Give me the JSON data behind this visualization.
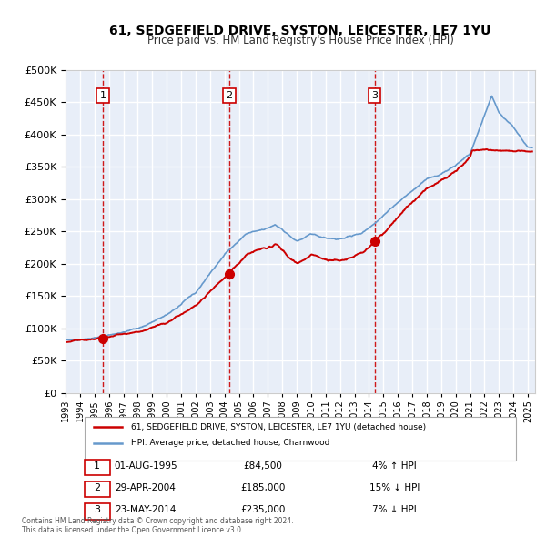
{
  "title": "61, SEDGEFIELD DRIVE, SYSTON, LEICESTER, LE7 1YU",
  "subtitle": "Price paid vs. HM Land Registry's House Price Index (HPI)",
  "bg_color": "#f0f4ff",
  "plot_bg_color": "#e8eef8",
  "grid_color": "#ffffff",
  "ylim": [
    0,
    500000
  ],
  "yticks": [
    0,
    50000,
    100000,
    150000,
    200000,
    250000,
    300000,
    350000,
    400000,
    450000,
    500000
  ],
  "xlim_start": 1993.0,
  "xlim_end": 2025.5,
  "sale_dates_decimal": [
    1995.583,
    2004.328,
    2014.389
  ],
  "sale_prices": [
    84500,
    185000,
    235000
  ],
  "sale_labels": [
    "1",
    "2",
    "3"
  ],
  "vline_color": "#cc0000",
  "vline_style": "--",
  "marker_color": "#cc0000",
  "hpi_line_color": "#6699cc",
  "price_line_color": "#cc0000",
  "legend_house_label": "61, SEDGEFIELD DRIVE, SYSTON, LEICESTER, LE7 1YU (detached house)",
  "legend_hpi_label": "HPI: Average price, detached house, Charnwood",
  "table_rows": [
    [
      "1",
      "01-AUG-1995",
      "£84,500",
      "4% ↑ HPI"
    ],
    [
      "2",
      "29-APR-2004",
      "£185,000",
      "15% ↓ HPI"
    ],
    [
      "3",
      "23-MAY-2014",
      "£235,000",
      "7% ↓ HPI"
    ]
  ],
  "footnote": "Contains HM Land Registry data © Crown copyright and database right 2024.\nThis data is licensed under the Open Government Licence v3.0.",
  "xlabel_years": [
    1993,
    1994,
    1995,
    1996,
    1997,
    1998,
    1999,
    2000,
    2001,
    2002,
    2003,
    2004,
    2005,
    2006,
    2007,
    2008,
    2009,
    2010,
    2011,
    2012,
    2013,
    2014,
    2015,
    2016,
    2017,
    2018,
    2019,
    2020,
    2021,
    2022,
    2023,
    2024,
    2025
  ]
}
